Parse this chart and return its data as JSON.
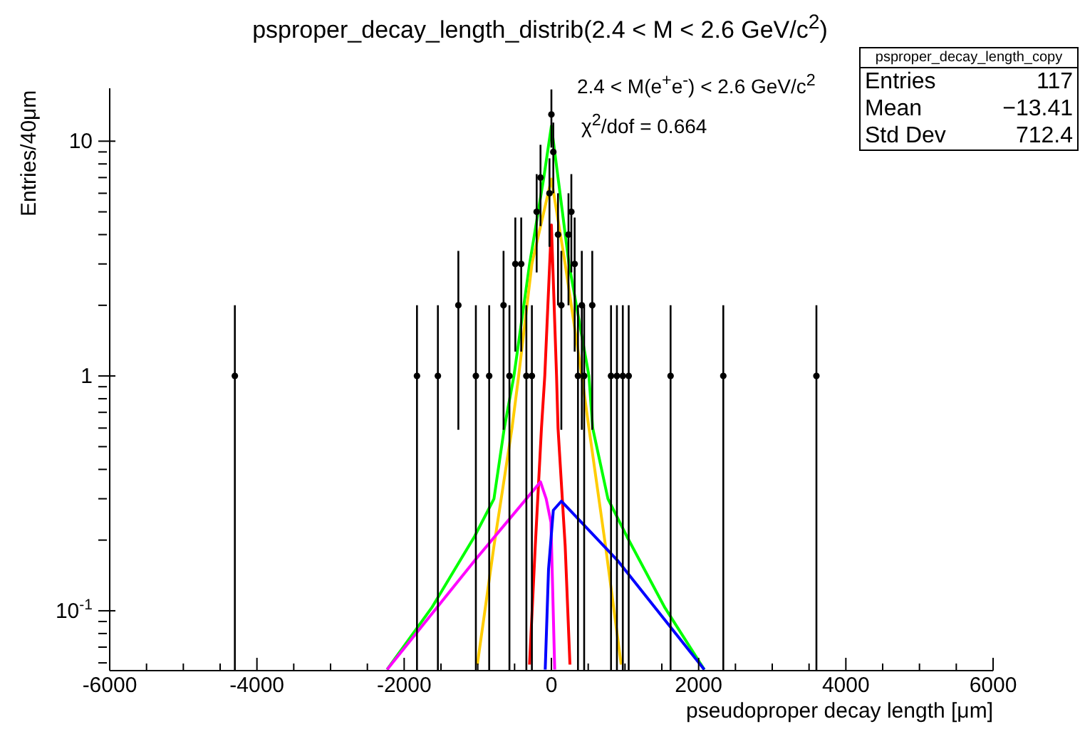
{
  "chart_data": {
    "type": "scatter",
    "title": "psproper_decay_length_distrib(2.4 < M < 2.6 GeV/c$^{2}$)",
    "xlabel": "pseudoproper decay length [μm]",
    "ylabel": "Entries/40μm",
    "annotations": [
      "2.4 < M(e$^{+}$e$^{-}$) < 2.6 GeV/c$^{2}$",
      "χ$^{2}$/dof = 0.664",
      "psproper_decay_length_copy",
      "Entries",
      "117",
      "Mean",
      "−13.41",
      "Std Dev",
      "712.4"
    ],
    "log": true,
    "grid": false,
    "legend": false,
    "line_style": "solid",
    "xlim": [
      -6000,
      6000
    ],
    "xticks": [
      -6000,
      {
        "value": -5500,
        "label": null
      },
      {
        "value": -5000,
        "label": null
      },
      {
        "value": -4500,
        "label": null
      },
      -4000,
      {
        "value": -3500,
        "label": null
      },
      {
        "value": -3000,
        "label": null
      },
      {
        "value": -2500,
        "label": null
      },
      -2000,
      {
        "value": -1500,
        "label": null
      },
      {
        "value": -1000,
        "label": null
      },
      {
        "value": -500,
        "label": null
      },
      0,
      {
        "value": 500,
        "label": null
      },
      {
        "value": 1000,
        "label": null
      },
      {
        "value": 1500,
        "label": null
      },
      2000,
      {
        "value": 2500,
        "label": null
      },
      {
        "value": 3000,
        "label": null
      },
      {
        "value": 3500,
        "label": null
      },
      4000,
      {
        "value": 4500,
        "label": null
      },
      {
        "value": 5000,
        "label": null
      },
      {
        "value": 5500,
        "label": null
      },
      6000
    ],
    "ylim": [
      0.0556,
      16.8
    ],
    "yticks": [
      {
        "value": 0.06,
        "label": null
      },
      {
        "value": 0.07,
        "label": null
      },
      {
        "value": 0.08,
        "label": null
      },
      {
        "value": 0.09,
        "label": null
      },
      {
        "value": 0.1,
        "label": "10$^{-1}$"
      },
      {
        "value": 0.2,
        "label": null
      },
      {
        "value": 0.3,
        "label": null
      },
      {
        "value": 0.4,
        "label": null
      },
      {
        "value": 0.5,
        "label": null
      },
      {
        "value": 0.6,
        "label": null
      },
      {
        "value": 0.7,
        "label": null
      },
      {
        "value": 0.8,
        "label": null
      },
      {
        "value": 0.9,
        "label": null
      },
      1,
      {
        "value": 2,
        "label": null
      },
      {
        "value": 3,
        "label": null
      },
      {
        "value": 4,
        "label": null
      },
      {
        "value": 5,
        "label": null
      },
      {
        "value": 6,
        "label": null
      },
      {
        "value": 7,
        "label": null
      },
      {
        "value": 8,
        "label": null
      },
      {
        "value": 9,
        "label": null
      },
      10
    ],
    "series": [
      {
        "marker": "circle",
        "color": "#000000",
        "x": [
          -4300,
          -1826,
          -1542,
          -1264,
          -1026,
          -845,
          -650,
          -570,
          -490,
          -410,
          -340,
          -265,
          -200,
          -148,
          -26,
          0,
          26,
          90,
          135,
          232,
          271,
          316,
          361,
          413,
          445,
          555,
          810,
          890,
          970,
          1050,
          1619,
          2335,
          3600
        ],
        "values": [
          1,
          1,
          1,
          2,
          1,
          1,
          2,
          1,
          3,
          3,
          1,
          1,
          5,
          7,
          6,
          13,
          9,
          4,
          2,
          4,
          5,
          3,
          1,
          2,
          1,
          2,
          1,
          1,
          1,
          1,
          1,
          1,
          1
        ],
        "errors": [
          [
            0.0556,
            2
          ],
          [
            0.0556,
            2
          ],
          [
            0.0556,
            2
          ],
          1.41,
          [
            0.0556,
            2
          ],
          [
            0.0556,
            2
          ],
          1.41,
          [
            0.0556,
            2
          ],
          1.73,
          1.73,
          [
            0.0556,
            2
          ],
          [
            0.0556,
            2
          ],
          2.24,
          2.65,
          2.45,
          3.61,
          3,
          2,
          1.41,
          2,
          2.24,
          1.73,
          [
            0.0556,
            2
          ],
          1.41,
          [
            0.0556,
            2
          ],
          1.41,
          [
            0.0556,
            2
          ],
          [
            0.0556,
            2
          ],
          [
            0.0556,
            2
          ],
          [
            0.0556,
            2
          ],
          [
            0.0556,
            2
          ],
          [
            0.0556,
            2
          ],
          [
            0.0556,
            2
          ]
        ]
      },
      {
        "type": "line",
        "color": "#00ff00",
        "x": [
          -2232,
          -1626,
          -1045,
          -780,
          -640,
          -509,
          -296,
          -103,
          0,
          90,
          239,
          510,
          561,
          768,
          1026,
          1542,
          2077
        ],
        "values": [
          0.0562,
          0.103,
          0.207,
          0.3,
          0.6,
          1.0,
          3.0,
          7.0,
          11.6,
          7.0,
          3.0,
          1.0,
          0.6,
          0.3,
          0.207,
          0.103,
          0.0562
        ]
      },
      {
        "type": "line",
        "color": "#ffcc00",
        "x": [
          -1006,
          -780,
          -535,
          -445,
          -265,
          0,
          187,
          413,
          510,
          735,
          948
        ],
        "values": [
          0.059,
          0.189,
          0.6,
          1.0,
          3.0,
          6.9,
          3.0,
          1.0,
          0.6,
          0.189,
          0.059
        ]
      },
      {
        "type": "line",
        "color": "#ff0000",
        "x": [
          -297,
          -219,
          -135,
          -90,
          0,
          70,
          90,
          187,
          252
        ],
        "values": [
          0.059,
          0.189,
          0.6,
          1.0,
          4.4,
          1.0,
          0.6,
          0.189,
          0.059
        ]
      },
      {
        "type": "line",
        "color": "#ff00ff",
        "x": [
          -2232,
          -1039,
          -148,
          -71,
          -6,
          45
        ],
        "values": [
          0.0562,
          0.164,
          0.354,
          0.3,
          0.238,
          0.0562
        ]
      },
      {
        "type": "line",
        "color": "#0000ff",
        "x": [
          -84,
          -39,
          26,
          135,
          897,
          2077
        ],
        "values": [
          0.0562,
          0.15,
          0.268,
          0.293,
          0.164,
          0.0562
        ]
      }
    ]
  }
}
